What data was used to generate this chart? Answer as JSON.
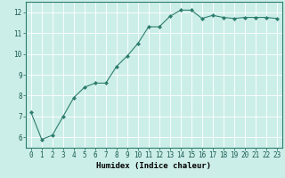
{
  "x": [
    0,
    1,
    2,
    3,
    4,
    5,
    6,
    7,
    8,
    9,
    10,
    11,
    12,
    13,
    14,
    15,
    16,
    17,
    18,
    19,
    20,
    21,
    22,
    23
  ],
  "y": [
    7.2,
    5.9,
    6.1,
    7.0,
    7.9,
    8.4,
    8.6,
    8.6,
    9.4,
    9.9,
    10.5,
    11.3,
    11.3,
    11.8,
    12.1,
    12.1,
    11.7,
    11.85,
    11.75,
    11.7,
    11.75,
    11.75,
    11.75,
    11.7
  ],
  "line_color": "#2e7d6e",
  "marker": "D",
  "marker_size": 2.0,
  "bg_color": "#cceee8",
  "grid_color": "#ffffff",
  "xlabel": "Humidex (Indice chaleur)",
  "ylabel": "",
  "xlim": [
    -0.5,
    23.5
  ],
  "ylim": [
    5.5,
    12.5
  ],
  "yticks": [
    6,
    7,
    8,
    9,
    10,
    11,
    12
  ],
  "xticks": [
    0,
    1,
    2,
    3,
    4,
    5,
    6,
    7,
    8,
    9,
    10,
    11,
    12,
    13,
    14,
    15,
    16,
    17,
    18,
    19,
    20,
    21,
    22,
    23
  ],
  "tick_fontsize": 5.5,
  "xlabel_fontsize": 6.5,
  "linewidth": 0.8
}
